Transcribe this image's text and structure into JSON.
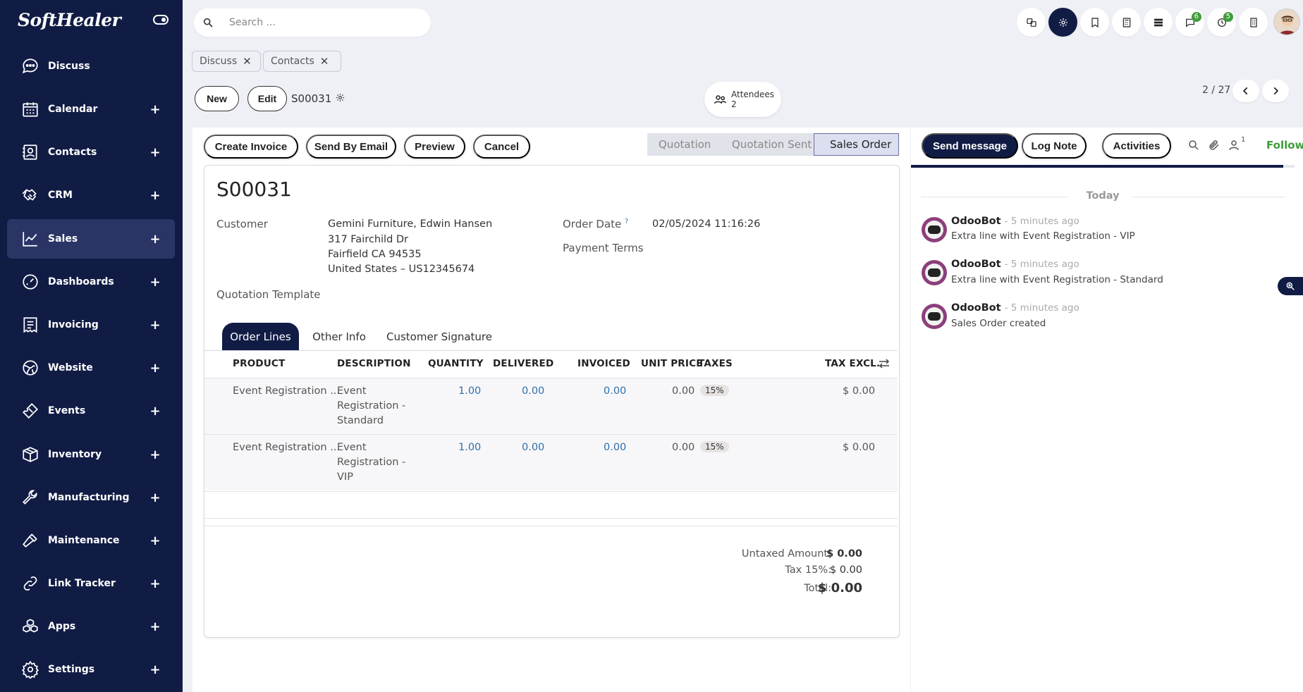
{
  "brand": {
    "logo_text": "SoftHealer"
  },
  "sidebar": {
    "items": [
      {
        "label": "Discuss",
        "icon": "chat-icon",
        "has_plus": false
      },
      {
        "label": "Calendar",
        "icon": "calendar-icon",
        "has_plus": true
      },
      {
        "label": "Contacts",
        "icon": "contacts-icon",
        "has_plus": true
      },
      {
        "label": "CRM",
        "icon": "handshake-icon",
        "has_plus": true
      },
      {
        "label": "Sales",
        "icon": "chart-line-icon",
        "has_plus": true,
        "active": true
      },
      {
        "label": "Dashboards",
        "icon": "gauge-icon",
        "has_plus": true
      },
      {
        "label": "Invoicing",
        "icon": "invoice-icon",
        "has_plus": true
      },
      {
        "label": "Website",
        "icon": "globe-icon",
        "has_plus": true
      },
      {
        "label": "Events",
        "icon": "ticket-icon",
        "has_plus": true
      },
      {
        "label": "Inventory",
        "icon": "box-icon",
        "has_plus": true
      },
      {
        "label": "Manufacturing",
        "icon": "wrench-icon",
        "has_plus": true
      },
      {
        "label": "Maintenance",
        "icon": "hammer-icon",
        "has_plus": true
      },
      {
        "label": "Link Tracker",
        "icon": "link-icon",
        "has_plus": true
      },
      {
        "label": "Apps",
        "icon": "apps-icon",
        "has_plus": true
      },
      {
        "label": "Settings",
        "icon": "gear-icon",
        "has_plus": true
      }
    ],
    "plus_label": "+"
  },
  "topbar": {
    "search_placeholder": "Search ...",
    "badges": {
      "messages": "6",
      "activities": "5"
    }
  },
  "breadcrumbs": [
    {
      "label": "Discuss"
    },
    {
      "label": "Contacts"
    }
  ],
  "controls": {
    "new_label": "New",
    "edit_label": "Edit",
    "record_name": "S00031",
    "attendees_label": "Attendees",
    "attendees_count": "2",
    "pager": "2 / 27"
  },
  "actions": [
    {
      "label": "Create Invoice"
    },
    {
      "label": "Send By Email"
    },
    {
      "label": "Preview"
    },
    {
      "label": "Cancel"
    }
  ],
  "statusbar": {
    "stages": [
      "Quotation",
      "Quotation Sent",
      "Sales Order"
    ],
    "current": "Sales Order"
  },
  "form": {
    "title": "S00031",
    "customer_label": "Customer",
    "customer_name": "Gemini Furniture, Edwin Hansen",
    "address_line1": "317 Fairchild Dr",
    "address_line2": "Fairfield CA 94535",
    "address_line3": "United States – US12345674",
    "quotation_template_label": "Quotation Template",
    "order_date_label": "Order Date",
    "order_date_help": "?",
    "order_date": "02/05/2024 11:16:26",
    "payment_terms_label": "Payment Terms"
  },
  "tabs": [
    {
      "label": "Order Lines"
    },
    {
      "label": "Other Info"
    },
    {
      "label": "Customer Signature"
    }
  ],
  "table": {
    "headers": {
      "product": "PRODUCT",
      "description": "DESCRIPTION",
      "quantity": "QUANTITY",
      "delivered": "DELIVERED",
      "invoiced": "INVOICED",
      "unit_price": "UNIT PRICE",
      "taxes": "TAXES",
      "tax_excl": "TAX EXCL."
    },
    "rows": [
      {
        "product": "Event Registration ...",
        "desc1": "Event",
        "desc2": "Registration -",
        "desc3": "Standard",
        "quantity": "1.00",
        "delivered": "0.00",
        "invoiced": "0.00",
        "unit_price": "0.00",
        "tax": "15%",
        "subtotal": "$ 0.00"
      },
      {
        "product": "Event Registration ...",
        "desc1": "Event",
        "desc2": "Registration -",
        "desc3": "VIP",
        "quantity": "1.00",
        "delivered": "0.00",
        "invoiced": "0.00",
        "unit_price": "0.00",
        "tax": "15%",
        "subtotal": "$ 0.00"
      }
    ]
  },
  "totals": {
    "untaxed_label": "Untaxed Amount:",
    "untaxed_value": "$ 0.00",
    "tax_label": "Tax 15%:",
    "tax_value": "$ 0.00",
    "total_label": "Total:",
    "total_value": "$ 0.00"
  },
  "chatter": {
    "send_message_label": "Send message",
    "log_note_label": "Log Note",
    "activities_label": "Activities",
    "followers_count": "1",
    "follow_label": "Follow",
    "progress": 0.97,
    "today_label": "Today",
    "messages": [
      {
        "author": "OdooBot",
        "time": "- 5 minutes ago",
        "body": "Extra line with Event Registration - VIP"
      },
      {
        "author": "OdooBot",
        "time": "- 5 minutes ago",
        "body": "Extra line with Event Registration - Standard"
      },
      {
        "author": "OdooBot",
        "time": "- 5 minutes ago",
        "body": "Sales Order created"
      }
    ]
  },
  "colors": {
    "sidebar_bg": "#111c45",
    "accent_green": "#3f9d3a",
    "link_blue": "#2f6fa8"
  }
}
